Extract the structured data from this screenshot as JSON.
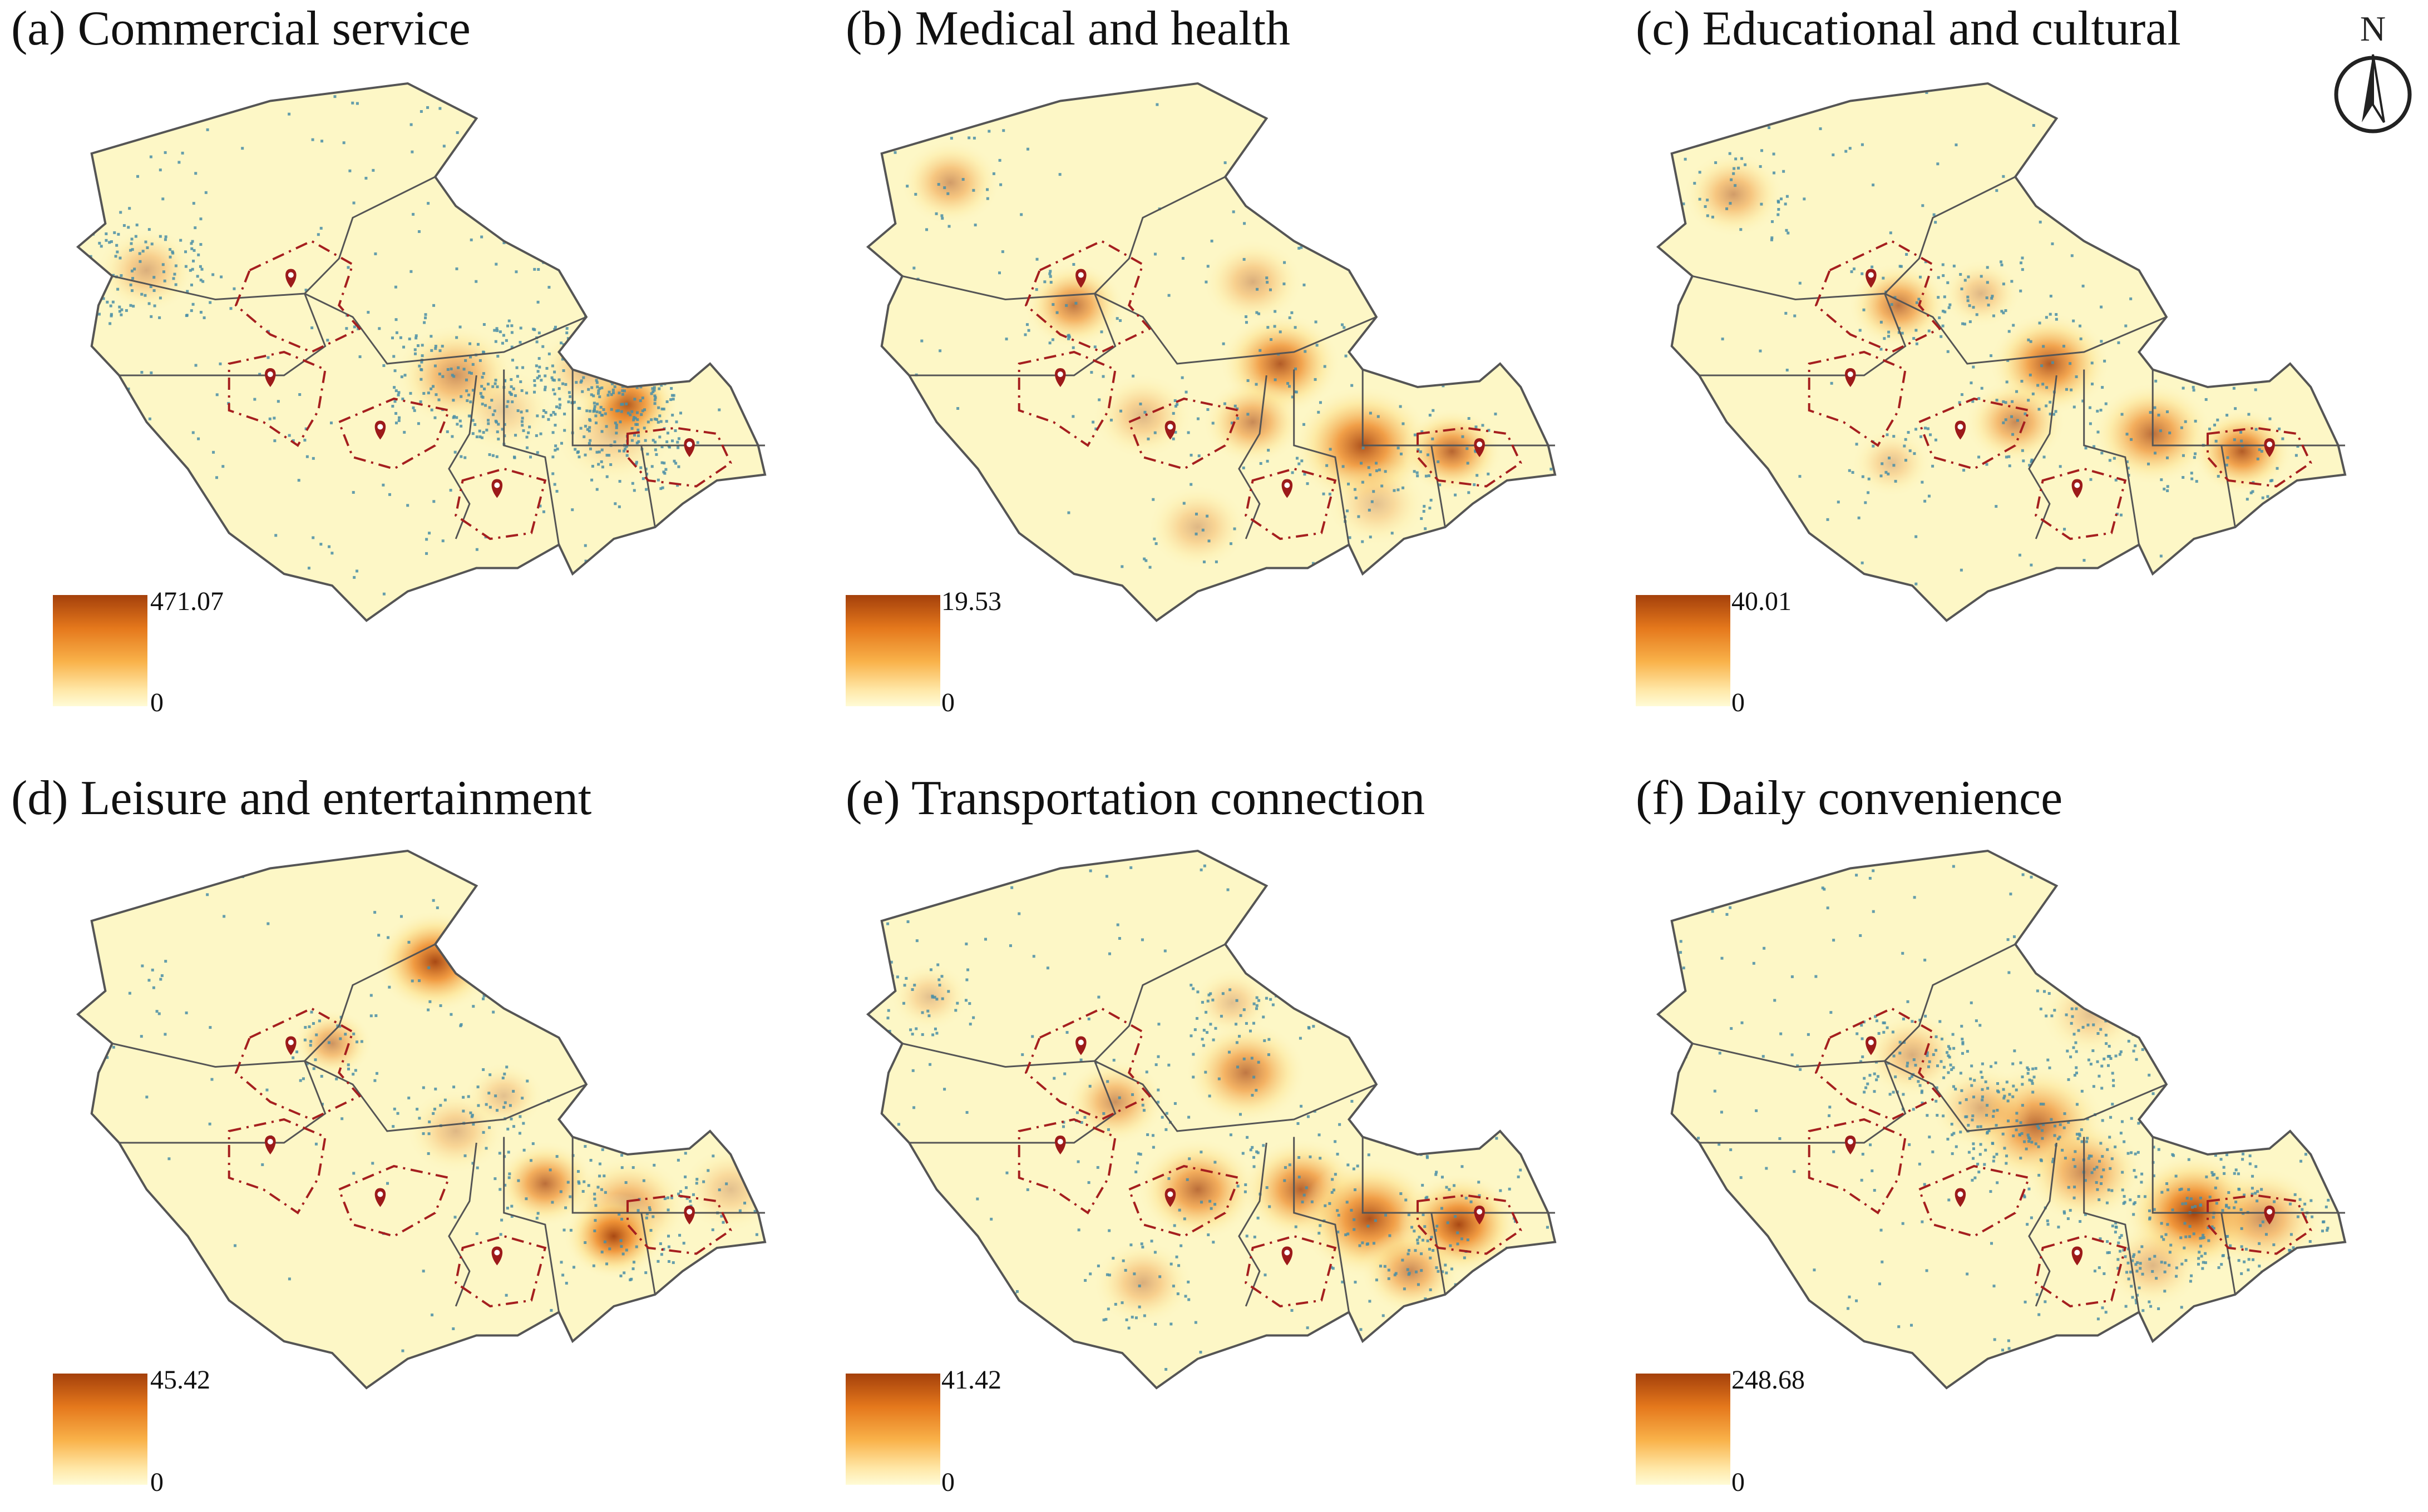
{
  "panels": [
    {
      "id": "a",
      "title": "(a) Commercial service",
      "legend_max": "471.07",
      "legend_min": "0",
      "hotspots": [
        [
          0.8,
          0.55,
          0.05,
          1.0
        ],
        [
          0.55,
          0.5,
          0.06,
          0.55
        ],
        [
          0.74,
          0.49,
          0.05,
          0.35
        ],
        [
          0.1,
          0.32,
          0.05,
          0.4
        ],
        [
          0.78,
          0.6,
          0.06,
          0.3
        ],
        [
          0.62,
          0.56,
          0.05,
          0.25
        ]
      ],
      "poi_density": 1.0
    },
    {
      "id": "b",
      "title": "(b) Medical and health",
      "legend_max": "19.53",
      "legend_min": "0",
      "hotspots": [
        [
          0.12,
          0.17,
          0.05,
          0.5
        ],
        [
          0.3,
          0.38,
          0.05,
          0.7
        ],
        [
          0.6,
          0.48,
          0.06,
          0.85
        ],
        [
          0.56,
          0.58,
          0.05,
          0.6
        ],
        [
          0.72,
          0.62,
          0.07,
          0.9
        ],
        [
          0.85,
          0.63,
          0.05,
          0.8
        ],
        [
          0.56,
          0.34,
          0.05,
          0.4
        ],
        [
          0.4,
          0.57,
          0.05,
          0.35
        ],
        [
          0.48,
          0.76,
          0.05,
          0.35
        ],
        [
          0.74,
          0.72,
          0.05,
          0.3
        ]
      ],
      "poi_density": 0.35
    },
    {
      "id": "c",
      "title": "(c) Educational and cultural",
      "legend_max": "40.01",
      "legend_min": "0",
      "hotspots": [
        [
          0.11,
          0.19,
          0.05,
          0.5
        ],
        [
          0.35,
          0.38,
          0.05,
          0.7
        ],
        [
          0.57,
          0.48,
          0.06,
          0.85
        ],
        [
          0.52,
          0.58,
          0.05,
          0.6
        ],
        [
          0.72,
          0.6,
          0.06,
          0.75
        ],
        [
          0.85,
          0.63,
          0.05,
          0.85
        ],
        [
          0.47,
          0.36,
          0.04,
          0.35
        ],
        [
          0.34,
          0.65,
          0.04,
          0.3
        ]
      ],
      "poi_density": 0.45
    },
    {
      "id": "d",
      "title": "(d) Leisure and entertainment",
      "legend_max": "45.42",
      "legend_min": "0",
      "hotspots": [
        [
          0.52,
          0.19,
          0.06,
          0.95
        ],
        [
          0.37,
          0.33,
          0.04,
          0.55
        ],
        [
          0.68,
          0.57,
          0.05,
          0.75
        ],
        [
          0.8,
          0.61,
          0.06,
          0.55
        ],
        [
          0.78,
          0.66,
          0.05,
          0.95
        ],
        [
          0.55,
          0.48,
          0.05,
          0.35
        ],
        [
          0.62,
          0.42,
          0.04,
          0.3
        ],
        [
          0.95,
          0.58,
          0.05,
          0.3
        ]
      ],
      "poi_density": 0.4
    },
    {
      "id": "e",
      "title": "(e) Transportation connection",
      "legend_max": "41.42",
      "legend_min": "0",
      "hotspots": [
        [
          0.55,
          0.38,
          0.06,
          0.7
        ],
        [
          0.36,
          0.43,
          0.05,
          0.55
        ],
        [
          0.48,
          0.58,
          0.06,
          0.75
        ],
        [
          0.63,
          0.58,
          0.06,
          0.8
        ],
        [
          0.73,
          0.63,
          0.07,
          0.9
        ],
        [
          0.86,
          0.64,
          0.06,
          0.95
        ],
        [
          0.79,
          0.72,
          0.05,
          0.6
        ],
        [
          0.4,
          0.74,
          0.05,
          0.4
        ],
        [
          0.09,
          0.25,
          0.04,
          0.3
        ],
        [
          0.53,
          0.26,
          0.04,
          0.3
        ]
      ],
      "poi_density": 0.55
    },
    {
      "id": "f",
      "title": "(f) Daily convenience",
      "legend_max": "248.68",
      "legend_min": "0",
      "hotspots": [
        [
          0.55,
          0.47,
          0.07,
          0.75
        ],
        [
          0.62,
          0.55,
          0.06,
          0.6
        ],
        [
          0.78,
          0.62,
          0.07,
          1.0
        ],
        [
          0.88,
          0.63,
          0.06,
          0.55
        ],
        [
          0.37,
          0.35,
          0.05,
          0.4
        ],
        [
          0.47,
          0.44,
          0.05,
          0.4
        ],
        [
          0.72,
          0.71,
          0.05,
          0.35
        ],
        [
          0.63,
          0.28,
          0.05,
          0.3
        ]
      ],
      "poi_density": 0.95
    }
  ],
  "north_arrow": {
    "label": "N"
  },
  "colors": {
    "base": "#fdf7c6",
    "ramp_low": "#fde08a",
    "ramp_mid": "#ee8a2a",
    "ramp_high": "#a4400b",
    "boundary": "#555555",
    "zone_dash": "#a51f1f",
    "marker": "#9c1a1a",
    "poi": "#4a8ea6"
  }
}
